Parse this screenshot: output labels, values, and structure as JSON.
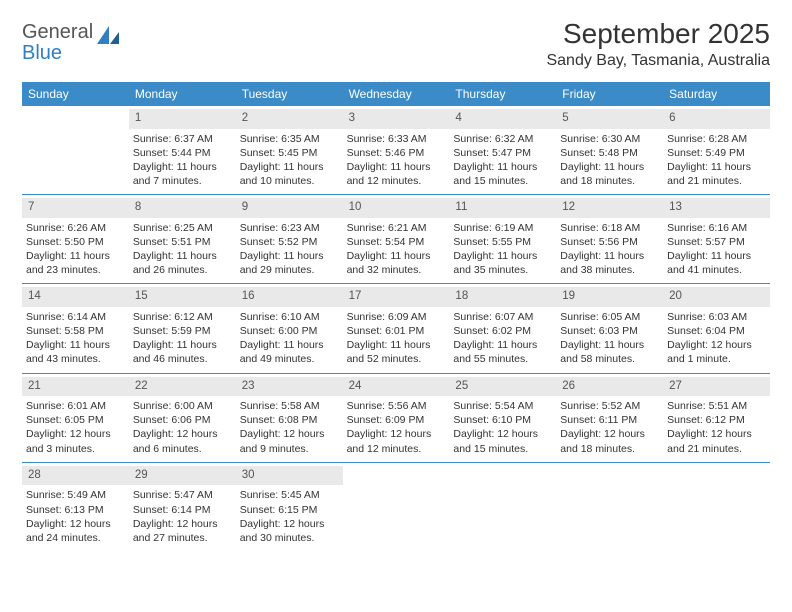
{
  "logo": {
    "text1": "General",
    "text2": "Blue"
  },
  "title": "September 2025",
  "subtitle": "Sandy Bay, Tasmania, Australia",
  "colors": {
    "header_bar": "#3b8bc9",
    "daynum_bg": "#e9e9e9",
    "rule": "#3b8bc9",
    "logo_blue": "#2f7fc2",
    "text": "#333333"
  },
  "weekdays": [
    "Sunday",
    "Monday",
    "Tuesday",
    "Wednesday",
    "Thursday",
    "Friday",
    "Saturday"
  ],
  "weeks": [
    [
      {
        "n": "",
        "sr": "",
        "ss": "",
        "dl": ""
      },
      {
        "n": "1",
        "sr": "Sunrise: 6:37 AM",
        "ss": "Sunset: 5:44 PM",
        "dl": "Daylight: 11 hours and 7 minutes."
      },
      {
        "n": "2",
        "sr": "Sunrise: 6:35 AM",
        "ss": "Sunset: 5:45 PM",
        "dl": "Daylight: 11 hours and 10 minutes."
      },
      {
        "n": "3",
        "sr": "Sunrise: 6:33 AM",
        "ss": "Sunset: 5:46 PM",
        "dl": "Daylight: 11 hours and 12 minutes."
      },
      {
        "n": "4",
        "sr": "Sunrise: 6:32 AM",
        "ss": "Sunset: 5:47 PM",
        "dl": "Daylight: 11 hours and 15 minutes."
      },
      {
        "n": "5",
        "sr": "Sunrise: 6:30 AM",
        "ss": "Sunset: 5:48 PM",
        "dl": "Daylight: 11 hours and 18 minutes."
      },
      {
        "n": "6",
        "sr": "Sunrise: 6:28 AM",
        "ss": "Sunset: 5:49 PM",
        "dl": "Daylight: 11 hours and 21 minutes."
      }
    ],
    [
      {
        "n": "7",
        "sr": "Sunrise: 6:26 AM",
        "ss": "Sunset: 5:50 PM",
        "dl": "Daylight: 11 hours and 23 minutes."
      },
      {
        "n": "8",
        "sr": "Sunrise: 6:25 AM",
        "ss": "Sunset: 5:51 PM",
        "dl": "Daylight: 11 hours and 26 minutes."
      },
      {
        "n": "9",
        "sr": "Sunrise: 6:23 AM",
        "ss": "Sunset: 5:52 PM",
        "dl": "Daylight: 11 hours and 29 minutes."
      },
      {
        "n": "10",
        "sr": "Sunrise: 6:21 AM",
        "ss": "Sunset: 5:54 PM",
        "dl": "Daylight: 11 hours and 32 minutes."
      },
      {
        "n": "11",
        "sr": "Sunrise: 6:19 AM",
        "ss": "Sunset: 5:55 PM",
        "dl": "Daylight: 11 hours and 35 minutes."
      },
      {
        "n": "12",
        "sr": "Sunrise: 6:18 AM",
        "ss": "Sunset: 5:56 PM",
        "dl": "Daylight: 11 hours and 38 minutes."
      },
      {
        "n": "13",
        "sr": "Sunrise: 6:16 AM",
        "ss": "Sunset: 5:57 PM",
        "dl": "Daylight: 11 hours and 41 minutes."
      }
    ],
    [
      {
        "n": "14",
        "sr": "Sunrise: 6:14 AM",
        "ss": "Sunset: 5:58 PM",
        "dl": "Daylight: 11 hours and 43 minutes."
      },
      {
        "n": "15",
        "sr": "Sunrise: 6:12 AM",
        "ss": "Sunset: 5:59 PM",
        "dl": "Daylight: 11 hours and 46 minutes."
      },
      {
        "n": "16",
        "sr": "Sunrise: 6:10 AM",
        "ss": "Sunset: 6:00 PM",
        "dl": "Daylight: 11 hours and 49 minutes."
      },
      {
        "n": "17",
        "sr": "Sunrise: 6:09 AM",
        "ss": "Sunset: 6:01 PM",
        "dl": "Daylight: 11 hours and 52 minutes."
      },
      {
        "n": "18",
        "sr": "Sunrise: 6:07 AM",
        "ss": "Sunset: 6:02 PM",
        "dl": "Daylight: 11 hours and 55 minutes."
      },
      {
        "n": "19",
        "sr": "Sunrise: 6:05 AM",
        "ss": "Sunset: 6:03 PM",
        "dl": "Daylight: 11 hours and 58 minutes."
      },
      {
        "n": "20",
        "sr": "Sunrise: 6:03 AM",
        "ss": "Sunset: 6:04 PM",
        "dl": "Daylight: 12 hours and 1 minute."
      }
    ],
    [
      {
        "n": "21",
        "sr": "Sunrise: 6:01 AM",
        "ss": "Sunset: 6:05 PM",
        "dl": "Daylight: 12 hours and 3 minutes."
      },
      {
        "n": "22",
        "sr": "Sunrise: 6:00 AM",
        "ss": "Sunset: 6:06 PM",
        "dl": "Daylight: 12 hours and 6 minutes."
      },
      {
        "n": "23",
        "sr": "Sunrise: 5:58 AM",
        "ss": "Sunset: 6:08 PM",
        "dl": "Daylight: 12 hours and 9 minutes."
      },
      {
        "n": "24",
        "sr": "Sunrise: 5:56 AM",
        "ss": "Sunset: 6:09 PM",
        "dl": "Daylight: 12 hours and 12 minutes."
      },
      {
        "n": "25",
        "sr": "Sunrise: 5:54 AM",
        "ss": "Sunset: 6:10 PM",
        "dl": "Daylight: 12 hours and 15 minutes."
      },
      {
        "n": "26",
        "sr": "Sunrise: 5:52 AM",
        "ss": "Sunset: 6:11 PM",
        "dl": "Daylight: 12 hours and 18 minutes."
      },
      {
        "n": "27",
        "sr": "Sunrise: 5:51 AM",
        "ss": "Sunset: 6:12 PM",
        "dl": "Daylight: 12 hours and 21 minutes."
      }
    ],
    [
      {
        "n": "28",
        "sr": "Sunrise: 5:49 AM",
        "ss": "Sunset: 6:13 PM",
        "dl": "Daylight: 12 hours and 24 minutes."
      },
      {
        "n": "29",
        "sr": "Sunrise: 5:47 AM",
        "ss": "Sunset: 6:14 PM",
        "dl": "Daylight: 12 hours and 27 minutes."
      },
      {
        "n": "30",
        "sr": "Sunrise: 5:45 AM",
        "ss": "Sunset: 6:15 PM",
        "dl": "Daylight: 12 hours and 30 minutes."
      },
      {
        "n": "",
        "sr": "",
        "ss": "",
        "dl": ""
      },
      {
        "n": "",
        "sr": "",
        "ss": "",
        "dl": ""
      },
      {
        "n": "",
        "sr": "",
        "ss": "",
        "dl": ""
      },
      {
        "n": "",
        "sr": "",
        "ss": "",
        "dl": ""
      }
    ]
  ]
}
